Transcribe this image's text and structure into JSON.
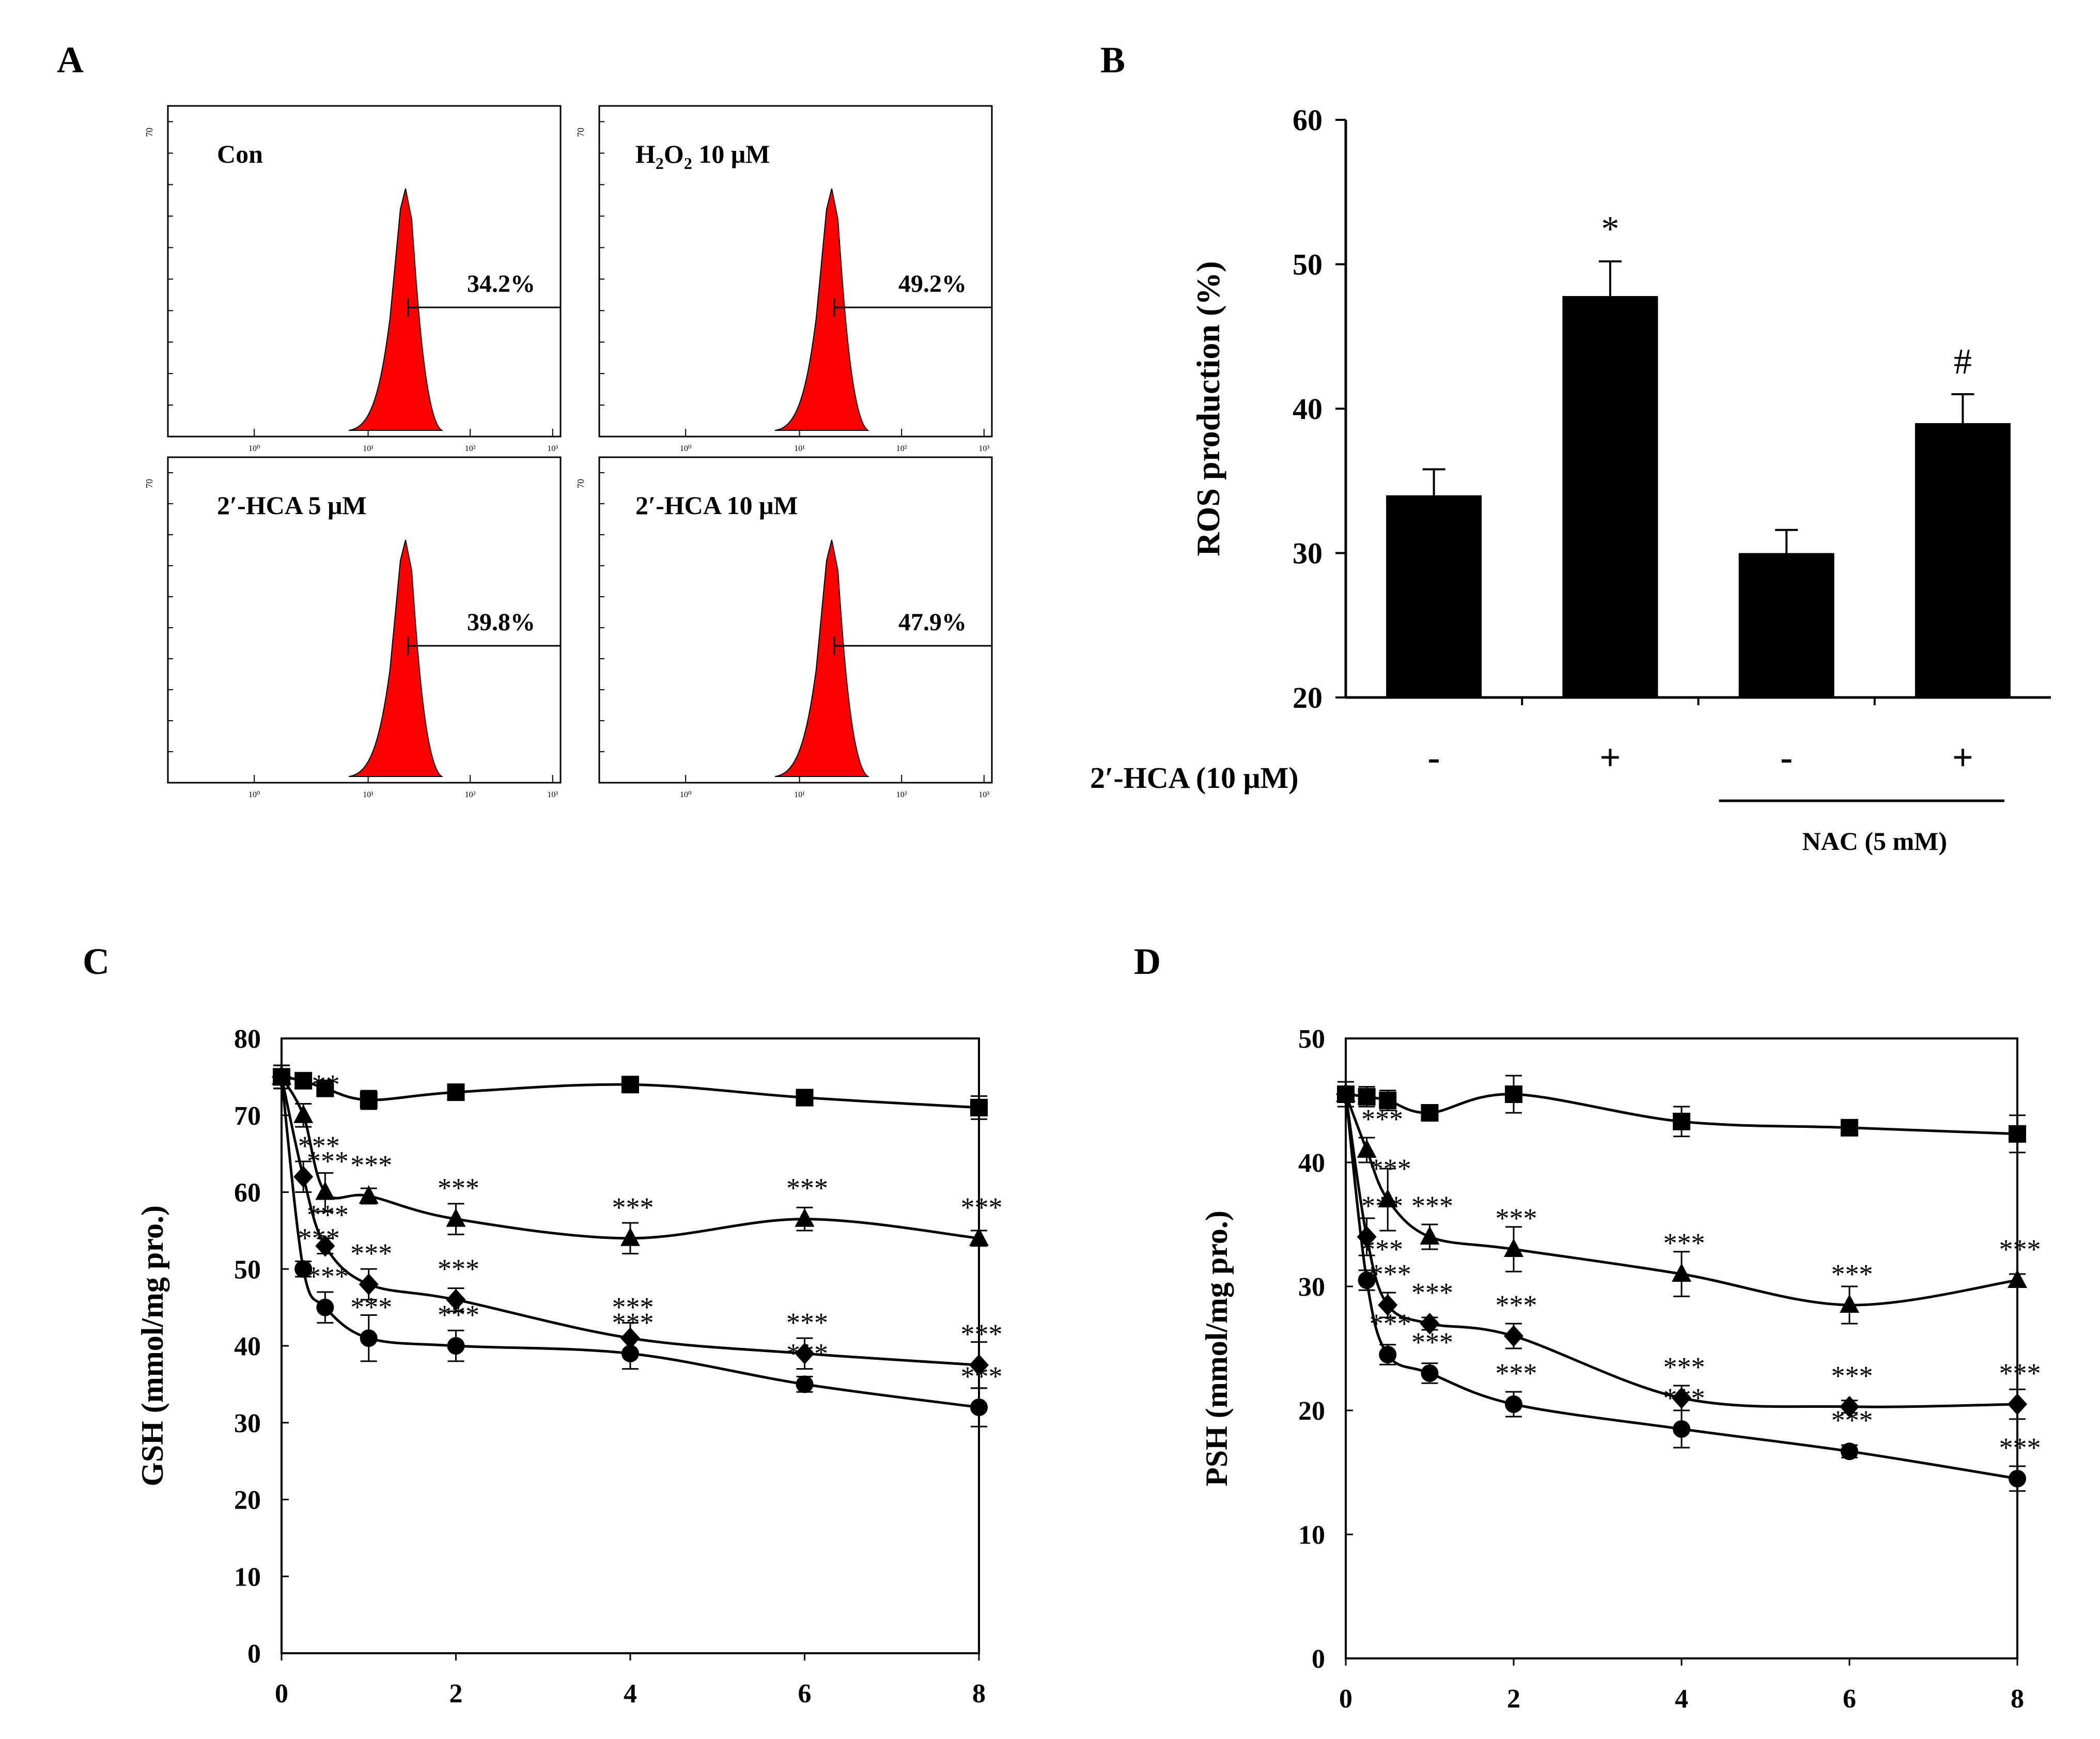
{
  "panels": {
    "a": "A",
    "b": "B",
    "c": "C",
    "d": "D"
  },
  "colors": {
    "histogram": "#ff0000",
    "ink": "#000000",
    "background": "#ffffff"
  },
  "chart_data": [
    {
      "type": "histogram",
      "panel": "A",
      "y_tick_label": "70",
      "x_tick_labels": [
        "10⁰",
        "10¹",
        "10²",
        "10³"
      ],
      "subplots": [
        {
          "label": "Con",
          "percent": "34.2%"
        },
        {
          "label_main": "H",
          "label_sub1": "2",
          "label_mid": "O",
          "label_sub2": "2",
          "label_rest": " 10 μM",
          "percent": "49.2%"
        },
        {
          "label": "2′-HCA 5 μM",
          "percent": "39.8%"
        },
        {
          "label": "2′-HCA 10  μM",
          "percent": "47.9%"
        }
      ]
    },
    {
      "type": "bar",
      "panel": "B",
      "ylabel": "ROS production  (%)",
      "ylim": [
        20,
        60
      ],
      "yticks": [
        20,
        30,
        40,
        50,
        60
      ],
      "categories": [
        "-",
        "+",
        "-",
        "+"
      ],
      "values": [
        34,
        47.8,
        30,
        39
      ],
      "errors": [
        1.8,
        2.4,
        1.6,
        2
      ],
      "annotations": [
        "",
        "*",
        "",
        "#"
      ],
      "row_label": "2′-HCA (10 μM)",
      "group_label": "NAC (5 mM)"
    },
    {
      "type": "line",
      "panel": "C",
      "ylabel": "GSH (mmol/mg  pro.)",
      "ylim": [
        0,
        80
      ],
      "yticks": [
        0,
        10,
        20,
        30,
        40,
        50,
        60,
        70,
        80
      ],
      "xlim": [
        0,
        8
      ],
      "xticks": [
        0,
        2,
        4,
        6,
        8
      ],
      "x": [
        0,
        0.25,
        0.5,
        1,
        2,
        4,
        6,
        8
      ],
      "series": [
        {
          "name": "square",
          "marker": "square",
          "values": [
            75,
            74.5,
            73.5,
            72,
            73,
            74,
            72.3,
            71
          ],
          "errors": [
            1.5,
            1,
            1,
            1.2,
            1,
            1,
            1,
            1.5
          ]
        },
        {
          "name": "triangle",
          "marker": "triangle",
          "values": [
            75,
            70,
            60,
            59.5,
            56.5,
            54,
            56.5,
            54
          ],
          "errors": [
            1.5,
            1.5,
            2.5,
            1,
            2,
            2,
            1.5,
            1
          ]
        },
        {
          "name": "diamond",
          "marker": "diamond",
          "values": [
            75,
            62,
            53,
            48,
            46,
            41,
            39,
            37.5
          ],
          "errors": [
            1.5,
            2,
            1,
            2,
            1.5,
            2,
            2,
            3
          ]
        },
        {
          "name": "circle",
          "marker": "circle",
          "values": [
            75,
            50,
            45,
            41,
            40,
            39,
            35,
            32
          ],
          "errors": [
            1.5,
            1,
            2,
            3,
            2,
            2,
            1,
            2.5
          ]
        }
      ],
      "significance": "***"
    },
    {
      "type": "line",
      "panel": "D",
      "ylabel": "PSH (mmol/mg  pro.)",
      "ylim": [
        0,
        50
      ],
      "yticks": [
        0,
        10,
        20,
        30,
        40,
        50
      ],
      "xlim": [
        0,
        8
      ],
      "xticks": [
        0,
        2,
        4,
        6,
        8
      ],
      "x": [
        0,
        0.25,
        0.5,
        1,
        2,
        4,
        6,
        8
      ],
      "series": [
        {
          "name": "square",
          "marker": "square",
          "values": [
            45.5,
            45.3,
            45,
            44,
            45.5,
            43.3,
            42.8,
            42.3
          ],
          "errors": [
            1,
            0.8,
            0.8,
            0.5,
            1.5,
            1.2,
            0.5,
            1.5
          ]
        },
        {
          "name": "triangle",
          "marker": "triangle",
          "values": [
            45.5,
            41,
            37,
            34,
            33,
            31,
            28.5,
            30.5
          ],
          "errors": [
            1,
            1,
            2.5,
            1,
            1.8,
            1.8,
            1.5,
            0.5
          ]
        },
        {
          "name": "diamond",
          "marker": "diamond",
          "values": [
            45.5,
            34,
            28.5,
            27,
            26,
            21,
            20.3,
            20.5
          ],
          "errors": [
            1,
            1.5,
            1,
            0.5,
            1,
            1,
            0.5,
            1.2
          ]
        },
        {
          "name": "circle",
          "marker": "circle",
          "values": [
            45.5,
            30.5,
            24.5,
            23,
            20.5,
            18.5,
            16.7,
            14.5
          ],
          "errors": [
            1,
            0.8,
            0.8,
            0.8,
            1,
            1.5,
            0.5,
            1
          ]
        }
      ],
      "significance": "***"
    }
  ]
}
